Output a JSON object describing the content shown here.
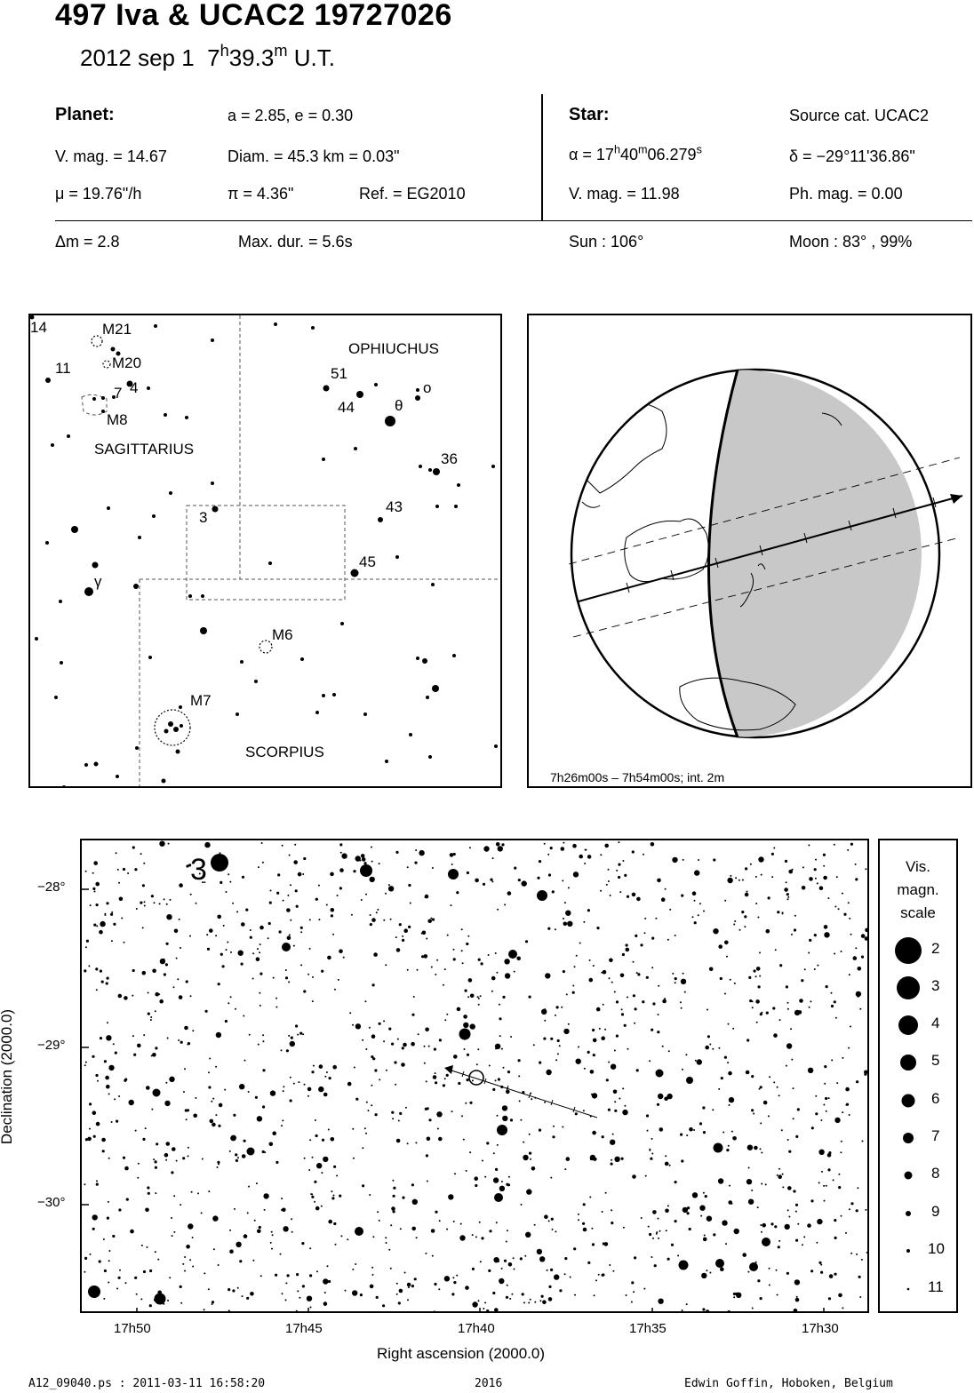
{
  "header": {
    "title": "497 Iva  &  UCAC2 19727026",
    "date": "2012 sep  1",
    "time_h": "7",
    "time_h_unit": "h",
    "time_m": "39.3",
    "time_m_unit": "m",
    "time_ut": "U.T."
  },
  "planet": {
    "heading": "Planet:",
    "orbit": "a = 2.85, e = 0.30",
    "vmag": "V. mag. = 14.67",
    "diam": "Diam. = 45.3 km = 0.03\"",
    "mu": "μ =  19.76\"/h",
    "pi": "π =  4.36\"",
    "ref": "Ref. = EG2010"
  },
  "star": {
    "heading": "Star:",
    "source": "Source cat.  UCAC2",
    "ra_prefix": "α = 17",
    "ra_h": "h",
    "ra_min": "40",
    "ra_m": "m",
    "ra_sec": "06.279",
    "ra_s": "s",
    "dec": "δ = −29°11'36.86\"",
    "vmag": "V. mag. = 11.98",
    "phmag": "Ph. mag. =  0.00"
  },
  "event": {
    "dm": "Δm = 2.8",
    "maxdur": "Max. dur. = 5.6s",
    "sun": "Sun : 106°",
    "moon": "Moon :  83° , 99%"
  },
  "finder": {
    "constellations": [
      "OPHIUCHUS",
      "SAGITTARIUS",
      "SCORPIUS"
    ],
    "objects": [
      "M21",
      "M20",
      "M8",
      "M6",
      "M7"
    ],
    "star_labels": [
      "14",
      "11",
      "7",
      "4",
      "51",
      "44",
      "θ",
      "ο",
      "36",
      "43",
      "3",
      "45",
      "γ"
    ]
  },
  "globe": {
    "caption": "7h26m00s –  7h54m00s; int.  2m"
  },
  "chart": {
    "label_3": "3",
    "dec_ticks": [
      "−28°",
      "−29°",
      "−30°"
    ],
    "ra_ticks": [
      "17h50",
      "17h45",
      "17h40",
      "17h35",
      "17h30"
    ],
    "xlabel": "Right ascension (2000.0)",
    "ylabel": "Declination (2000.0)"
  },
  "scale": {
    "title_lines": [
      "Vis.",
      "magn.",
      "scale"
    ],
    "mags": [
      "2",
      "3",
      "4",
      "5",
      "6",
      "7",
      "8",
      "9",
      "10",
      "11"
    ]
  },
  "footer": {
    "file": "A12_09040.ps : 2011-03-11 16:58:20",
    "year": "2016",
    "author": "Edwin Goffin, Hoboken, Belgium"
  }
}
